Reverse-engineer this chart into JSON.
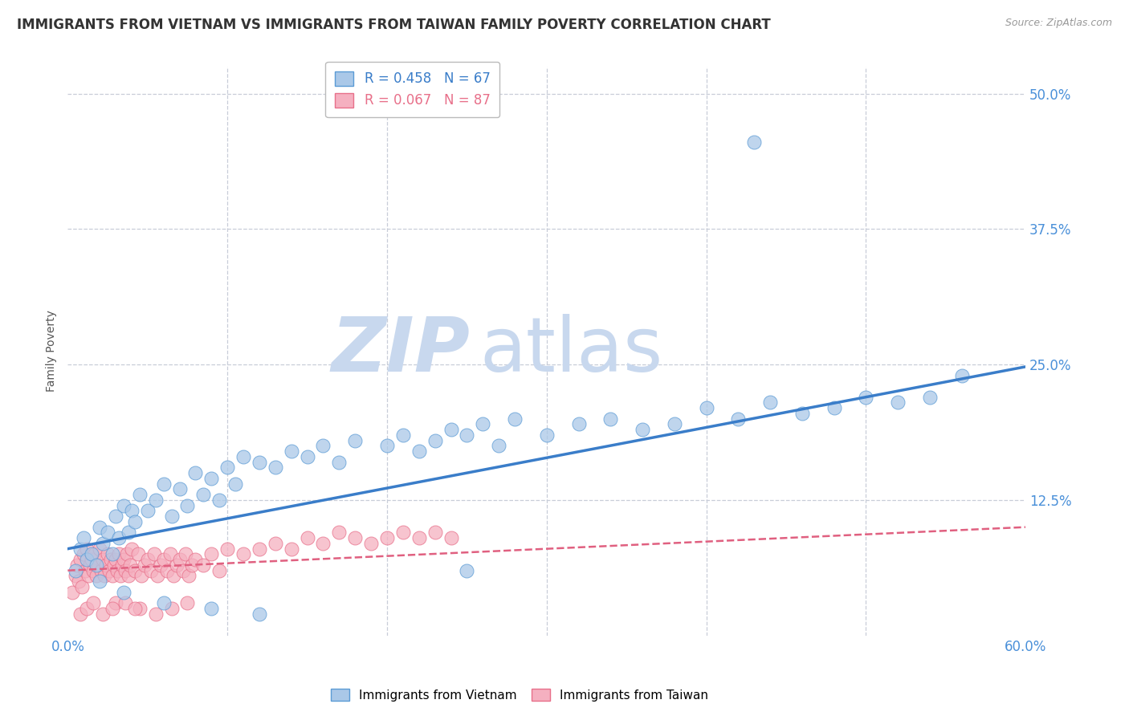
{
  "title": "IMMIGRANTS FROM VIETNAM VS IMMIGRANTS FROM TAIWAN FAMILY POVERTY CORRELATION CHART",
  "source": "Source: ZipAtlas.com",
  "ylabel": "Family Poverty",
  "xlim": [
    0.0,
    0.6
  ],
  "ylim": [
    0.0,
    0.525
  ],
  "yticks": [
    0.0,
    0.125,
    0.25,
    0.375,
    0.5
  ],
  "ytick_labels_right": [
    "",
    "12.5%",
    "25.0%",
    "37.5%",
    "50.0%"
  ],
  "xticks": [
    0.0,
    0.1,
    0.2,
    0.3,
    0.4,
    0.5,
    0.6
  ],
  "xtick_labels": [
    "0.0%",
    "",
    "",
    "",
    "",
    "",
    "60.0%"
  ],
  "vietnam_color": "#aac8e8",
  "taiwan_color": "#f5b0c0",
  "vietnam_edge_color": "#5b9bd5",
  "taiwan_edge_color": "#e8708a",
  "vietnam_line_color": "#3a7dc9",
  "taiwan_line_color": "#e06080",
  "legend_R_vietnam": "R = 0.458",
  "legend_N_vietnam": "N = 67",
  "legend_R_taiwan": "R = 0.067",
  "legend_N_taiwan": "N = 87",
  "vietnam_scatter_x": [
    0.005,
    0.008,
    0.01,
    0.012,
    0.015,
    0.018,
    0.02,
    0.022,
    0.025,
    0.028,
    0.03,
    0.032,
    0.035,
    0.038,
    0.04,
    0.042,
    0.045,
    0.05,
    0.055,
    0.06,
    0.065,
    0.07,
    0.075,
    0.08,
    0.085,
    0.09,
    0.095,
    0.1,
    0.105,
    0.11,
    0.12,
    0.13,
    0.14,
    0.15,
    0.16,
    0.17,
    0.18,
    0.2,
    0.21,
    0.22,
    0.23,
    0.24,
    0.25,
    0.26,
    0.27,
    0.28,
    0.3,
    0.32,
    0.34,
    0.36,
    0.38,
    0.4,
    0.42,
    0.44,
    0.46,
    0.48,
    0.5,
    0.52,
    0.54,
    0.56,
    0.02,
    0.035,
    0.06,
    0.09,
    0.12,
    0.43,
    0.25
  ],
  "vietnam_scatter_y": [
    0.06,
    0.08,
    0.09,
    0.07,
    0.075,
    0.065,
    0.1,
    0.085,
    0.095,
    0.075,
    0.11,
    0.09,
    0.12,
    0.095,
    0.115,
    0.105,
    0.13,
    0.115,
    0.125,
    0.14,
    0.11,
    0.135,
    0.12,
    0.15,
    0.13,
    0.145,
    0.125,
    0.155,
    0.14,
    0.165,
    0.16,
    0.155,
    0.17,
    0.165,
    0.175,
    0.16,
    0.18,
    0.175,
    0.185,
    0.17,
    0.18,
    0.19,
    0.185,
    0.195,
    0.175,
    0.2,
    0.185,
    0.195,
    0.2,
    0.19,
    0.195,
    0.21,
    0.2,
    0.215,
    0.205,
    0.21,
    0.22,
    0.215,
    0.22,
    0.24,
    0.05,
    0.04,
    0.03,
    0.025,
    0.02,
    0.455,
    0.06
  ],
  "taiwan_scatter_x": [
    0.003,
    0.005,
    0.006,
    0.007,
    0.008,
    0.009,
    0.01,
    0.011,
    0.012,
    0.013,
    0.014,
    0.015,
    0.016,
    0.017,
    0.018,
    0.019,
    0.02,
    0.021,
    0.022,
    0.023,
    0.024,
    0.025,
    0.026,
    0.027,
    0.028,
    0.029,
    0.03,
    0.031,
    0.032,
    0.033,
    0.034,
    0.035,
    0.036,
    0.037,
    0.038,
    0.039,
    0.04,
    0.042,
    0.044,
    0.046,
    0.048,
    0.05,
    0.052,
    0.054,
    0.056,
    0.058,
    0.06,
    0.062,
    0.064,
    0.066,
    0.068,
    0.07,
    0.072,
    0.074,
    0.076,
    0.078,
    0.08,
    0.085,
    0.09,
    0.095,
    0.1,
    0.11,
    0.12,
    0.13,
    0.14,
    0.15,
    0.16,
    0.17,
    0.18,
    0.19,
    0.2,
    0.21,
    0.22,
    0.23,
    0.24,
    0.03,
    0.045,
    0.055,
    0.065,
    0.075,
    0.008,
    0.012,
    0.016,
    0.022,
    0.028,
    0.036,
    0.042
  ],
  "taiwan_scatter_y": [
    0.04,
    0.055,
    0.065,
    0.05,
    0.07,
    0.045,
    0.075,
    0.06,
    0.08,
    0.055,
    0.065,
    0.07,
    0.06,
    0.075,
    0.055,
    0.065,
    0.08,
    0.06,
    0.07,
    0.055,
    0.065,
    0.075,
    0.06,
    0.07,
    0.055,
    0.065,
    0.07,
    0.06,
    0.075,
    0.055,
    0.065,
    0.07,
    0.06,
    0.075,
    0.055,
    0.065,
    0.08,
    0.06,
    0.075,
    0.055,
    0.065,
    0.07,
    0.06,
    0.075,
    0.055,
    0.065,
    0.07,
    0.06,
    0.075,
    0.055,
    0.065,
    0.07,
    0.06,
    0.075,
    0.055,
    0.065,
    0.07,
    0.065,
    0.075,
    0.06,
    0.08,
    0.075,
    0.08,
    0.085,
    0.08,
    0.09,
    0.085,
    0.095,
    0.09,
    0.085,
    0.09,
    0.095,
    0.09,
    0.095,
    0.09,
    0.03,
    0.025,
    0.02,
    0.025,
    0.03,
    0.02,
    0.025,
    0.03,
    0.02,
    0.025,
    0.03,
    0.025
  ],
  "vietnam_line_x": [
    0.0,
    0.6
  ],
  "vietnam_line_y": [
    0.08,
    0.248
  ],
  "taiwan_line_x": [
    0.0,
    0.6
  ],
  "taiwan_line_y": [
    0.06,
    0.1
  ],
  "watermark_zip": "ZIP",
  "watermark_atlas": "atlas",
  "watermark_color_zip": "#c8d8ee",
  "watermark_color_atlas": "#c8d8ee",
  "background_color": "#ffffff",
  "grid_color": "#c8cdd8",
  "tick_color": "#4a90d9",
  "title_fontsize": 12,
  "axis_label_fontsize": 10,
  "tick_fontsize": 12,
  "source_fontsize": 9
}
